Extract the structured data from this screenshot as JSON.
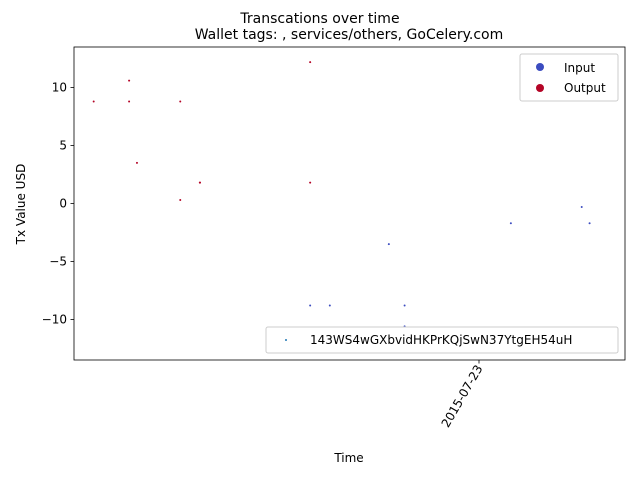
{
  "chart_data": {
    "type": "scatter",
    "title": "Transcations over time",
    "subtitle": "Wallet tags: , services/others, GoCelery.com",
    "xlabel": "Time",
    "ylabel": "Tx Value USD",
    "x_tick_labels": [
      "2015-07-23"
    ],
    "y_ticks": [
      -10,
      -5,
      0,
      5,
      10
    ],
    "ylim": [
      -13.5,
      13.5
    ],
    "grid": false,
    "legend_top": {
      "placement": "top-right",
      "entries": [
        {
          "label": "Input",
          "color": "#3b4cc0"
        },
        {
          "label": "Output",
          "color": "#b40426"
        }
      ]
    },
    "legend_bottom": {
      "placement": "lower-right",
      "entries": [
        {
          "label": "143WS4wGXbvidHKPrKQjSwN37YtgEH54uH",
          "color": "#1f77b4"
        }
      ]
    },
    "series": [
      {
        "type": "Output",
        "color": "#b40426",
        "x": [
          0.05,
          0.14,
          0.14,
          0.16,
          0.27,
          0.27,
          0.32,
          0.32,
          0.6,
          0.6
        ],
        "y": [
          8.8,
          10.6,
          8.8,
          3.5,
          8.8,
          0.3,
          1.8,
          1.8,
          12.2,
          1.8
        ]
      },
      {
        "type": "Input",
        "color": "#3b4cc0",
        "x": [
          0.6,
          0.65,
          0.8,
          0.84,
          0.84,
          1.11,
          1.29,
          1.31
        ],
        "y": [
          -8.8,
          -8.8,
          -3.5,
          -8.8,
          -10.6,
          -1.7,
          -0.3,
          -1.7
        ]
      }
    ]
  }
}
